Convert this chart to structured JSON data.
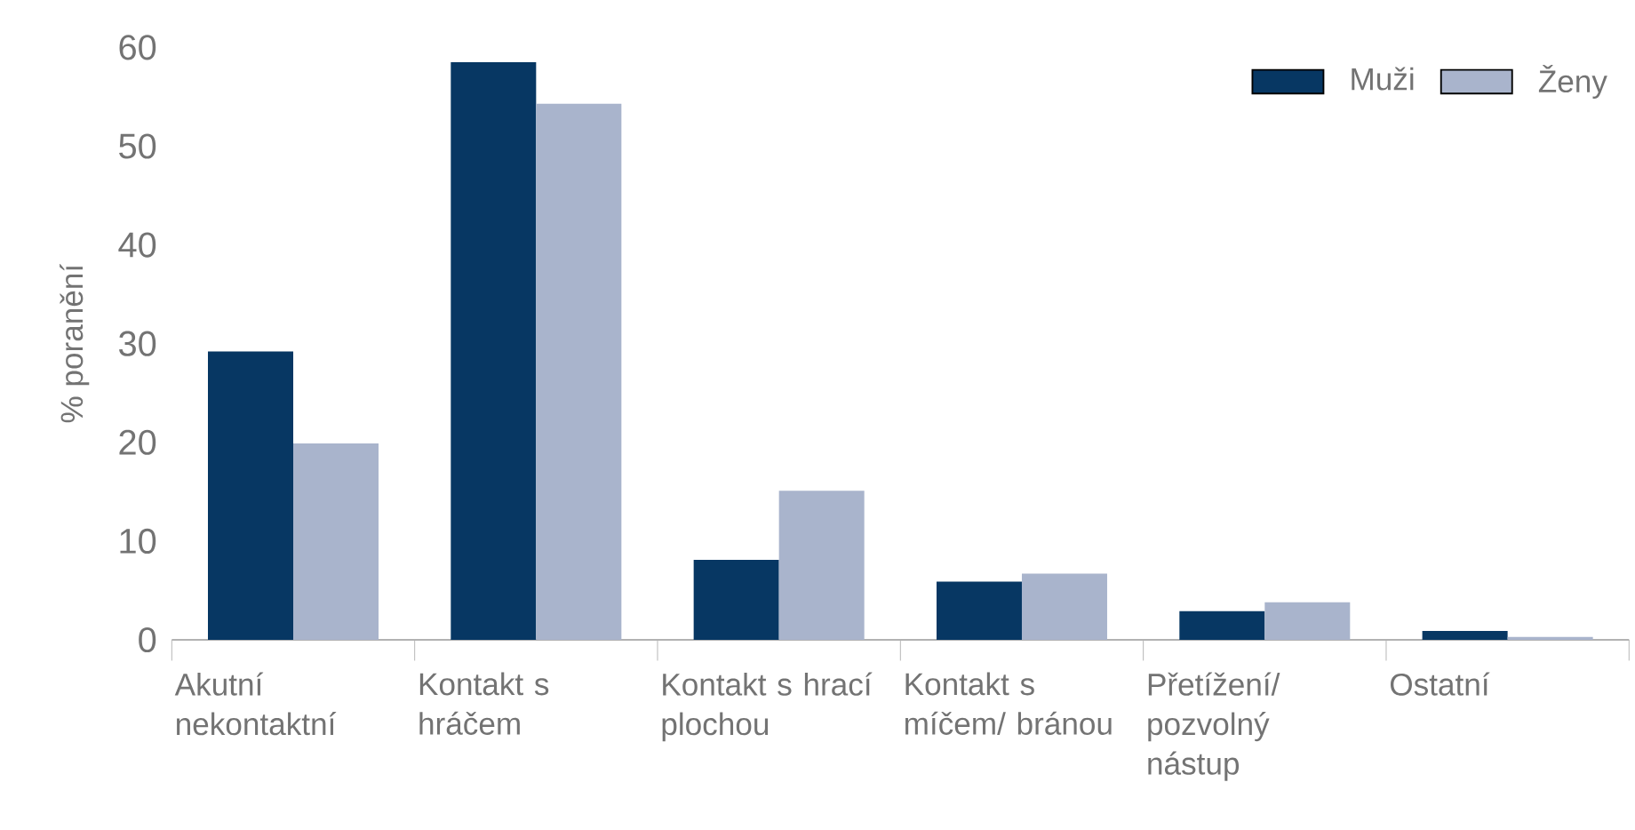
{
  "chart_data": {
    "type": "bar",
    "ylabel": "% poranění",
    "categories": [
      "Akutní nekontaktní",
      "Kontakt s hráčem",
      "Kontakt s hrací plochou",
      "Kontakt s míčem/ bránou",
      "Přetížení/ pozvolný nástup",
      "Ostatní"
    ],
    "series": [
      {
        "name": "Muži",
        "color": "#073763",
        "values": [
          29.2,
          58.5,
          8.1,
          5.9,
          2.9,
          0.9
        ]
      },
      {
        "name": "Ženy",
        "color": "#a9b4cc",
        "values": [
          19.9,
          54.3,
          15.1,
          6.7,
          3.8,
          0.3
        ]
      }
    ],
    "ylim": [
      0,
      60
    ],
    "yticks": [
      0,
      10,
      20,
      30,
      40,
      50,
      60
    ],
    "legend": "top right"
  }
}
